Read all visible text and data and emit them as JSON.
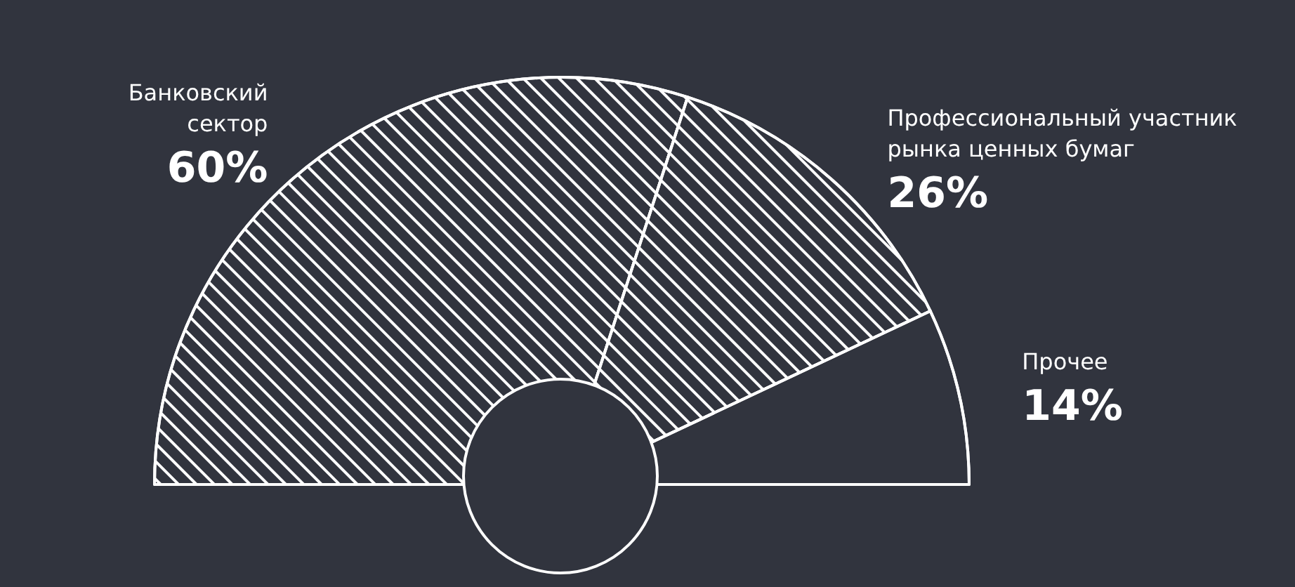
{
  "chart_data": {
    "type": "pie",
    "categories": [
      "Банковский сектор",
      "Профессиональный участник рынка ценных бумаг",
      "Прочее"
    ],
    "values": [
      60,
      26,
      14
    ],
    "colors": [
      "#ffffff",
      "#ffffff",
      "#31343e"
    ],
    "value_labels": [
      "60%",
      "26%",
      "14%"
    ]
  }
}
